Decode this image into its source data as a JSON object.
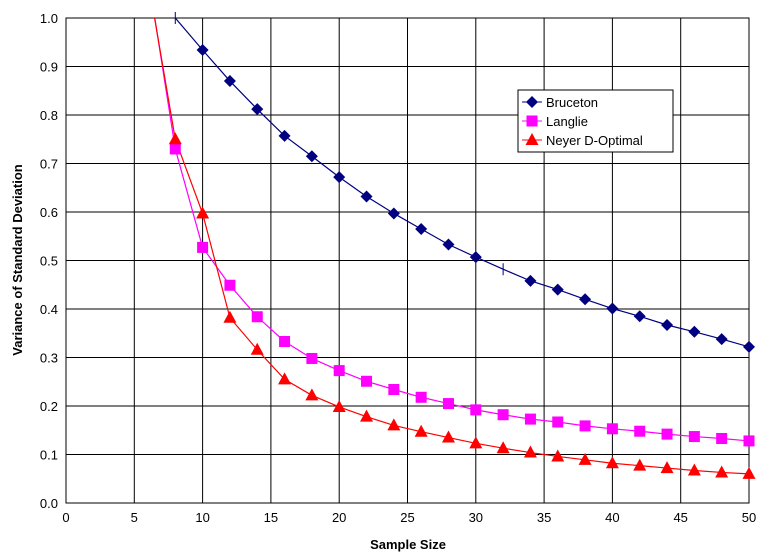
{
  "chart_data": {
    "type": "line",
    "title": "",
    "xlabel": "Sample Size",
    "ylabel": "Variance of Standard Deviation",
    "xlim": [
      0,
      50
    ],
    "ylim": [
      0,
      1.0
    ],
    "xticks": [
      "0",
      "5",
      "10",
      "15",
      "20",
      "25",
      "30",
      "35",
      "40",
      "45",
      "50"
    ],
    "yticks": [
      "0.0",
      "0.1",
      "0.2",
      "0.3",
      "0.4",
      "0.5",
      "0.6",
      "0.7",
      "0.8",
      "0.9",
      "1.0"
    ],
    "grid": true,
    "legend_position": "top-right",
    "series": [
      {
        "name": "Bruceton",
        "color": "#000080",
        "marker": "diamond",
        "x": [
          8,
          10,
          12,
          14,
          16,
          18,
          20,
          22,
          24,
          26,
          28,
          30,
          32,
          34,
          36,
          38,
          40,
          42,
          44,
          46,
          48,
          50
        ],
        "y": [
          1.0,
          0.934,
          0.87,
          0.812,
          0.757,
          0.715,
          0.672,
          0.632,
          0.597,
          0.565,
          0.533,
          0.507,
          0.482,
          0.458,
          0.44,
          0.42,
          0.401,
          0.385,
          0.367,
          0.353,
          0.338,
          0.322
        ],
        "unmarked_x": [
          8,
          32
        ]
      },
      {
        "name": "Langlie",
        "color": "#FF00FF",
        "marker": "square",
        "x": [
          6,
          8,
          10,
          12,
          14,
          16,
          18,
          20,
          22,
          24,
          26,
          28,
          30,
          32,
          34,
          36,
          38,
          40,
          42,
          44,
          46,
          48,
          50
        ],
        "y": [
          1.09,
          0.73,
          0.527,
          0.449,
          0.384,
          0.333,
          0.298,
          0.273,
          0.251,
          0.234,
          0.218,
          0.205,
          0.192,
          0.182,
          0.173,
          0.167,
          0.159,
          0.153,
          0.148,
          0.142,
          0.137,
          0.133,
          0.128
        ]
      },
      {
        "name": "Neyer D-Optimal",
        "color": "#FF0000",
        "marker": "triangle",
        "x": [
          6,
          8,
          10,
          12,
          14,
          16,
          18,
          20,
          22,
          24,
          26,
          28,
          30,
          32,
          34,
          36,
          38,
          40,
          42,
          44,
          46,
          48,
          50
        ],
        "y": [
          1.08,
          0.75,
          0.597,
          0.382,
          0.316,
          0.255,
          0.222,
          0.198,
          0.178,
          0.16,
          0.147,
          0.135,
          0.123,
          0.113,
          0.104,
          0.096,
          0.089,
          0.082,
          0.077,
          0.072,
          0.067,
          0.063,
          0.06
        ]
      }
    ]
  }
}
